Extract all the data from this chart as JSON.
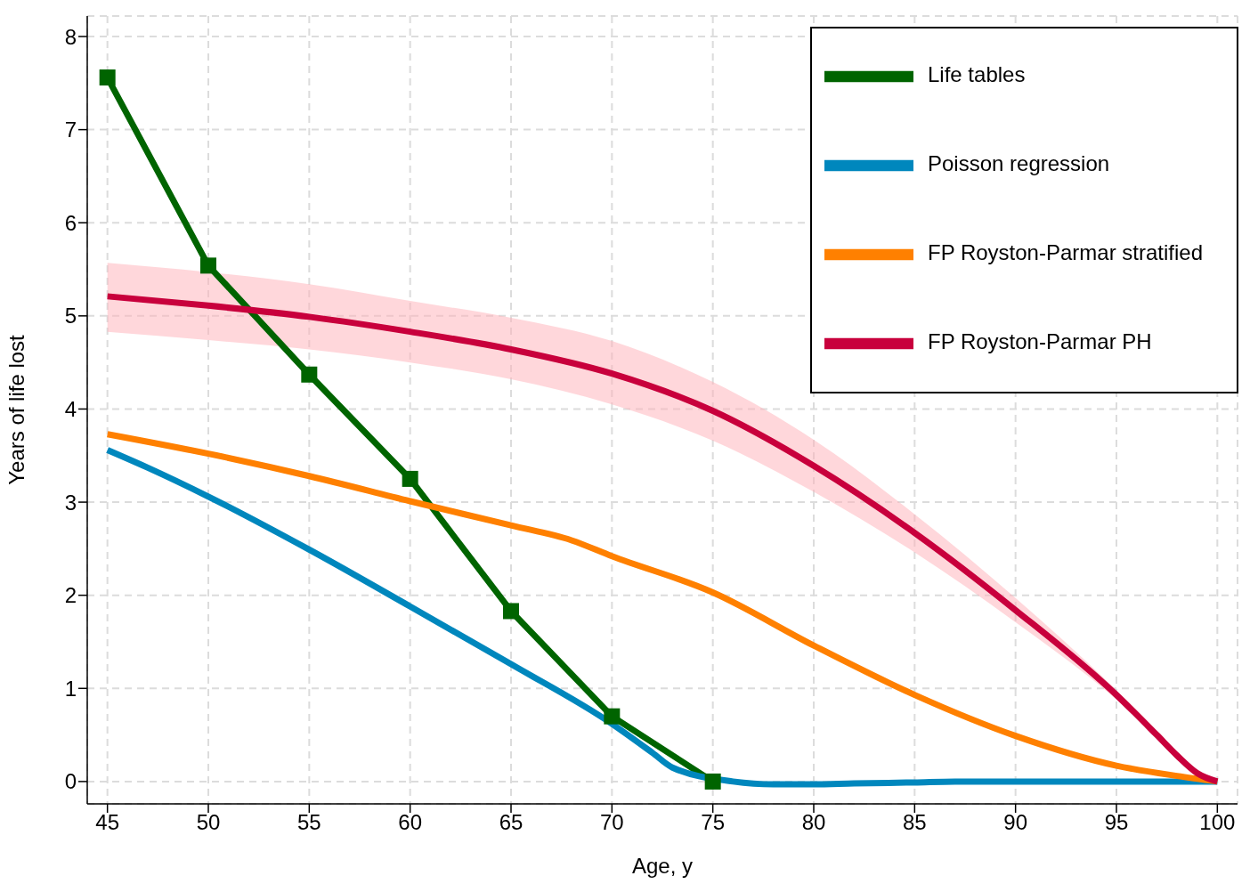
{
  "chart_data": {
    "type": "line",
    "xlabel": "Age, y",
    "ylabel": "Years of life lost",
    "xlim": [
      44,
      101
    ],
    "xticks": [
      45,
      50,
      55,
      60,
      65,
      70,
      75,
      80,
      85,
      90,
      95,
      100
    ],
    "ylim": [
      -0.24,
      8.22
    ],
    "yticks": [
      0,
      1,
      2,
      3,
      4,
      5,
      6,
      7,
      8
    ],
    "grid": true,
    "legend": "top right",
    "marker": "none",
    "line_style": "solid",
    "series": [
      {
        "name": "Life tables",
        "color": "#006400",
        "marker": "square",
        "x": [
          45,
          50,
          55,
          60,
          65,
          70,
          75
        ],
        "values": [
          7.56,
          5.54,
          4.37,
          3.25,
          1.83,
          0.7,
          0
        ]
      },
      {
        "name": "Poisson regression",
        "color": "#0087bd",
        "x": [
          45,
          47,
          50,
          55,
          60,
          65,
          70,
          72,
          73,
          76,
          78,
          80,
          82,
          85,
          87,
          90,
          95,
          100
        ],
        "values": [
          3.56,
          3.37,
          3.06,
          2.49,
          1.88,
          1.26,
          0.62,
          0.31,
          0.15,
          0,
          -0.03,
          -0.03,
          -0.02,
          -0.01,
          0,
          0,
          0,
          0
        ]
      },
      {
        "name": "FP Royston-Parmar stratified",
        "color": "#ff8000",
        "x": [
          45,
          50,
          55,
          60,
          65,
          68,
          70,
          75,
          80,
          85,
          90,
          95,
          98,
          100
        ],
        "values": [
          3.73,
          3.52,
          3.28,
          3.01,
          2.75,
          2.59,
          2.42,
          2.03,
          1.46,
          0.93,
          0.49,
          0.17,
          0.06,
          0
        ]
      },
      {
        "name": "FP Royston-Parmar PH",
        "color": "#c8003c",
        "x": [
          45,
          50,
          55,
          60,
          65,
          70,
          75,
          80,
          85,
          90,
          95,
          97,
          98,
          99,
          100
        ],
        "values": [
          5.21,
          5.11,
          4.99,
          4.83,
          4.64,
          4.38,
          3.98,
          3.39,
          2.67,
          1.84,
          0.93,
          0.5,
          0.28,
          0.09,
          0
        ],
        "lower": [
          4.83,
          4.74,
          4.64,
          4.5,
          4.32,
          4.05,
          3.66,
          3.11,
          2.46,
          1.71,
          0.88,
          0.48,
          0.27,
          0.08,
          0
        ],
        "upper": [
          5.57,
          5.47,
          5.34,
          5.16,
          4.98,
          4.73,
          4.29,
          3.67,
          2.87,
          1.97,
          0.98,
          0.54,
          0.3,
          0.1,
          0
        ]
      }
    ]
  }
}
